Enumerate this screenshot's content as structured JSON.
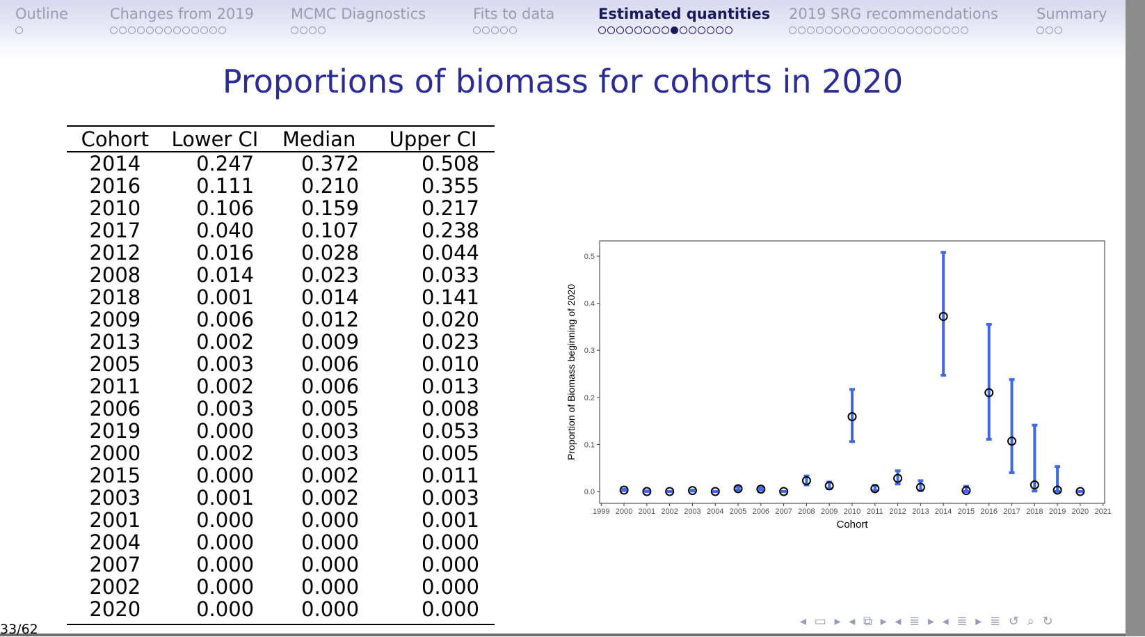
{
  "nav": {
    "sections": [
      {
        "label": "Outline",
        "dots": 1,
        "filled": -1,
        "active": false
      },
      {
        "label": "Changes from 2019",
        "dots": 13,
        "filled": -1,
        "active": false
      },
      {
        "label": "MCMC Diagnostics",
        "dots": 4,
        "filled": -1,
        "active": false
      },
      {
        "label": "Fits to data",
        "dots": 5,
        "filled": -1,
        "active": false
      },
      {
        "label": "Estimated quantities",
        "dots": 15,
        "filled": 8,
        "active": true
      },
      {
        "label": "2019 SRG recommendations",
        "dots": 20,
        "filled": -1,
        "active": false
      },
      {
        "label": "Summary",
        "dots": 3,
        "filled": -1,
        "active": false
      }
    ]
  },
  "slide": {
    "title": "Proportions of biomass for cohorts in 2020",
    "page_number": "33/62"
  },
  "table": {
    "headers": [
      "Cohort",
      "Lower CI",
      "Median",
      "Upper CI"
    ],
    "rows": [
      [
        "2014",
        "0.247",
        "0.372",
        "0.508"
      ],
      [
        "2016",
        "0.111",
        "0.210",
        "0.355"
      ],
      [
        "2010",
        "0.106",
        "0.159",
        "0.217"
      ],
      [
        "2017",
        "0.040",
        "0.107",
        "0.238"
      ],
      [
        "2012",
        "0.016",
        "0.028",
        "0.044"
      ],
      [
        "2008",
        "0.014",
        "0.023",
        "0.033"
      ],
      [
        "2018",
        "0.001",
        "0.014",
        "0.141"
      ],
      [
        "2009",
        "0.006",
        "0.012",
        "0.020"
      ],
      [
        "2013",
        "0.002",
        "0.009",
        "0.023"
      ],
      [
        "2005",
        "0.003",
        "0.006",
        "0.010"
      ],
      [
        "2011",
        "0.002",
        "0.006",
        "0.013"
      ],
      [
        "2006",
        "0.003",
        "0.005",
        "0.008"
      ],
      [
        "2019",
        "0.000",
        "0.003",
        "0.053"
      ],
      [
        "2000",
        "0.002",
        "0.003",
        "0.005"
      ],
      [
        "2015",
        "0.000",
        "0.002",
        "0.011"
      ],
      [
        "2003",
        "0.001",
        "0.002",
        "0.003"
      ],
      [
        "2001",
        "0.000",
        "0.000",
        "0.001"
      ],
      [
        "2004",
        "0.000",
        "0.000",
        "0.000"
      ],
      [
        "2007",
        "0.000",
        "0.000",
        "0.000"
      ],
      [
        "2002",
        "0.000",
        "0.000",
        "0.000"
      ],
      [
        "2020",
        "0.000",
        "0.000",
        "0.000"
      ]
    ]
  },
  "chart_data": {
    "type": "scatter",
    "xlabel": "Cohort",
    "ylabel": "Proportion of Biomass beginning of 2020",
    "xlim": [
      1999,
      2021
    ],
    "ylim": [
      0,
      0.5
    ],
    "x_ticks": [
      1999,
      2000,
      2001,
      2002,
      2003,
      2004,
      2005,
      2006,
      2007,
      2008,
      2009,
      2010,
      2011,
      2012,
      2013,
      2014,
      2015,
      2016,
      2017,
      2018,
      2019,
      2020,
      2021
    ],
    "y_ticks": [
      "0.0",
      "0.1",
      "0.2",
      "0.3",
      "0.4",
      "0.5"
    ],
    "grid": false,
    "series": [
      {
        "points": [
          {
            "x": 2000,
            "median": 0.003,
            "lower": 0.002,
            "upper": 0.005
          },
          {
            "x": 2001,
            "median": 0.0,
            "lower": 0.0,
            "upper": 0.001
          },
          {
            "x": 2002,
            "median": 0.0,
            "lower": 0.0,
            "upper": 0.0
          },
          {
            "x": 2003,
            "median": 0.002,
            "lower": 0.001,
            "upper": 0.003
          },
          {
            "x": 2004,
            "median": 0.0,
            "lower": 0.0,
            "upper": 0.0
          },
          {
            "x": 2005,
            "median": 0.006,
            "lower": 0.003,
            "upper": 0.01
          },
          {
            "x": 2006,
            "median": 0.005,
            "lower": 0.003,
            "upper": 0.008
          },
          {
            "x": 2007,
            "median": 0.0,
            "lower": 0.0,
            "upper": 0.0
          },
          {
            "x": 2008,
            "median": 0.023,
            "lower": 0.014,
            "upper": 0.033
          },
          {
            "x": 2009,
            "median": 0.012,
            "lower": 0.006,
            "upper": 0.02
          },
          {
            "x": 2010,
            "median": 0.159,
            "lower": 0.106,
            "upper": 0.217
          },
          {
            "x": 2011,
            "median": 0.006,
            "lower": 0.002,
            "upper": 0.013
          },
          {
            "x": 2012,
            "median": 0.028,
            "lower": 0.016,
            "upper": 0.044
          },
          {
            "x": 2013,
            "median": 0.009,
            "lower": 0.002,
            "upper": 0.023
          },
          {
            "x": 2014,
            "median": 0.372,
            "lower": 0.247,
            "upper": 0.508
          },
          {
            "x": 2015,
            "median": 0.002,
            "lower": 0.0,
            "upper": 0.011
          },
          {
            "x": 2016,
            "median": 0.21,
            "lower": 0.111,
            "upper": 0.355
          },
          {
            "x": 2017,
            "median": 0.107,
            "lower": 0.04,
            "upper": 0.238
          },
          {
            "x": 2018,
            "median": 0.014,
            "lower": 0.001,
            "upper": 0.141
          },
          {
            "x": 2019,
            "median": 0.003,
            "lower": 0.0,
            "upper": 0.053
          },
          {
            "x": 2020,
            "median": 0.0,
            "lower": 0.0,
            "upper": 0.0
          }
        ]
      }
    ],
    "colors": {
      "error_bar": "#4169e1",
      "marker": "#000000"
    }
  },
  "beamer_nav": {
    "symbols": "◂ ▭ ▸  ◂ ⧉ ▸  ◂ ≣ ▸  ◂ ≣ ▸   ≣   ↺ ⌕ ↻"
  }
}
